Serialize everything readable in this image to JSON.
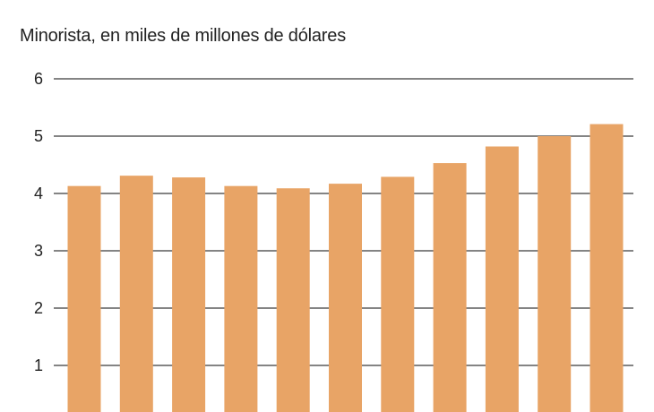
{
  "chart_data": {
    "type": "bar",
    "title": "Minorista, en miles de millones de dólares",
    "xlabel": "",
    "ylabel": "",
    "ylim": [
      0,
      6
    ],
    "y_ticks": [
      "1",
      "2",
      "3",
      "4",
      "5",
      "6"
    ],
    "grid": true,
    "legend": "none",
    "colors": {
      "bar": "#E8A466",
      "grid": "#3a3a3a",
      "text": "#222222"
    },
    "values": [
      4.13,
      4.31,
      4.28,
      4.13,
      4.09,
      4.17,
      4.29,
      4.53,
      4.82,
      5.0,
      5.21
    ]
  }
}
